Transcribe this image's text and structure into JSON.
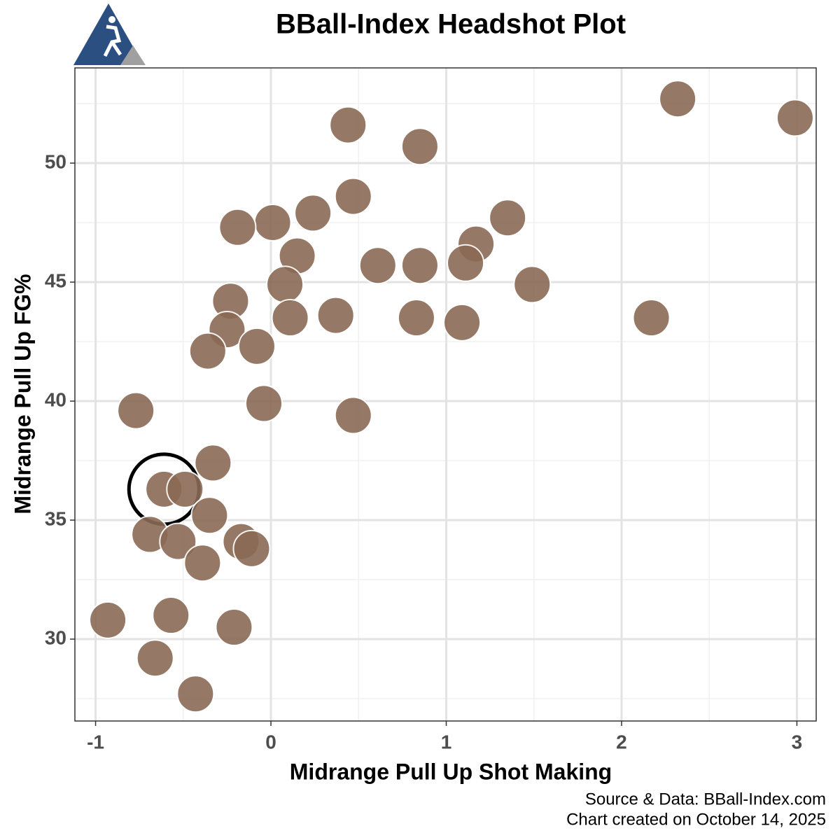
{
  "chart_data": {
    "type": "scatter",
    "title": "BBall-Index Headshot Plot",
    "x_label": "Midrange Pull Up Shot Making",
    "y_label": "Midrange Pull Up FG%",
    "source": "Source & Data: BBall-Index.com",
    "created": "Chart created on October 14, 2025",
    "x": [
      2.32,
      2.99,
      0.44,
      0.85,
      0.47,
      0.24,
      0.01,
      -0.19,
      1.35,
      1.17,
      0.15,
      0.61,
      0.85,
      1.11,
      1.49,
      0.08,
      -0.23,
      0.37,
      0.11,
      0.83,
      1.09,
      2.17,
      -0.25,
      -0.36,
      -0.08,
      -0.04,
      0.47,
      -0.77,
      -0.33,
      -0.61,
      -0.49,
      -0.35,
      -0.69,
      -0.53,
      -0.17,
      -0.11,
      -0.39,
      -0.93,
      -0.57,
      -0.21,
      -0.66,
      -0.43
    ],
    "values": [
      52.7,
      51.9,
      51.6,
      50.7,
      48.6,
      47.9,
      47.5,
      47.3,
      47.7,
      46.6,
      46.1,
      45.7,
      45.7,
      45.8,
      44.9,
      44.9,
      44.2,
      43.6,
      43.5,
      43.5,
      43.3,
      43.5,
      43.0,
      42.1,
      42.3,
      39.9,
      39.4,
      39.6,
      37.4,
      36.3,
      36.3,
      35.2,
      34.4,
      34.1,
      34.1,
      33.8,
      33.2,
      30.8,
      31.0,
      30.5,
      29.2,
      27.7
    ],
    "color": "#8a6a55",
    "highlight_index": 29,
    "xlim": [
      -1.118,
      3.11
    ],
    "ylim": [
      26.56,
      54.0
    ],
    "xticks": [
      -1,
      0,
      1,
      2,
      3
    ],
    "yticks": [
      30,
      35,
      40,
      45,
      50
    ],
    "minor_xticks": [
      -0.5,
      0.5,
      1.5,
      2.5
    ],
    "minor_yticks": [
      27.5,
      32.5,
      37.5,
      42.5,
      47.5,
      52.5
    ],
    "grid": true
  }
}
